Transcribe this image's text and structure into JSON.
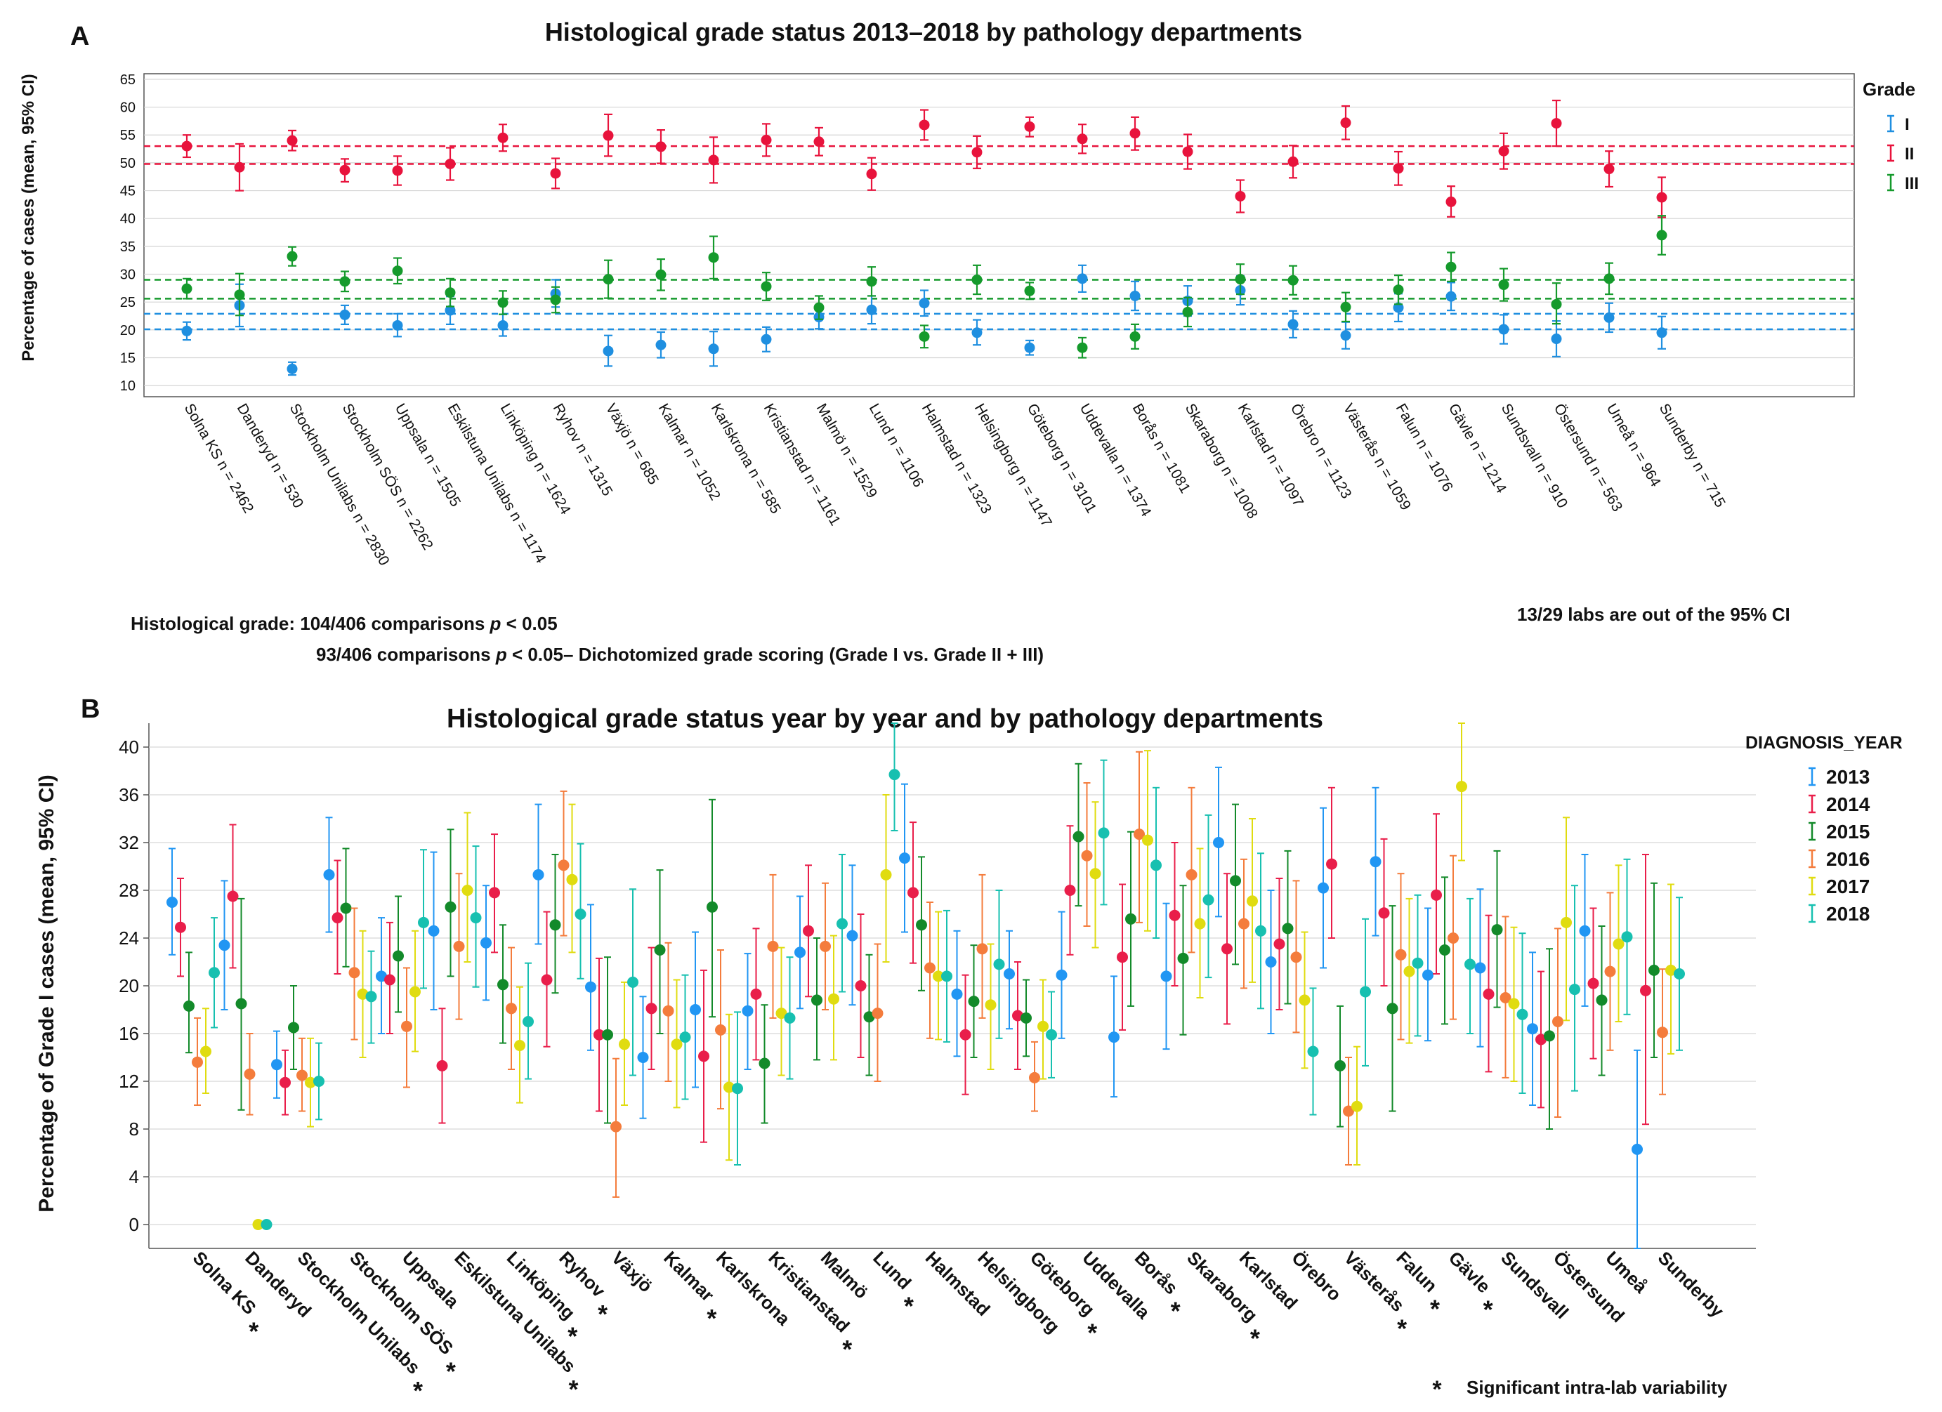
{
  "panel_a": {
    "letter": "A",
    "footnote_line1_prefix": "Histological grade: 104/406 comparisons",
    "footnote_line2_prefix": "93/406 comparisons",
    "footnote_p": "p",
    "footnote_line1_suffix": "< 0.05",
    "footnote_line2_suffix": "< 0.05– Dichotomized grade scoring (Grade I vs. Grade II + III)",
    "ci_note": "13/29 labs are out of the 95% CI"
  },
  "panel_b": {
    "letter": "B",
    "sig_star": "*",
    "sig_note": "Significant intra-lab variability"
  },
  "chart_data": [
    {
      "type": "scatter",
      "title": "Histological grade status 2013–2018 by pathology departments",
      "xlabel": "",
      "ylabel": "Percentage of cases (mean, 95% CI)",
      "ylim": [
        8,
        66
      ],
      "yticks": [
        10,
        15,
        20,
        25,
        30,
        35,
        40,
        45,
        50,
        55,
        60,
        65
      ],
      "grid": true,
      "legend_title": "Grade",
      "legend_position": "right",
      "categories": [
        "Solna KS n = 2462",
        "Danderyd n = 530",
        "Stockholm Unilabs n = 2830",
        "Stockholm SÖS n = 2262",
        "Uppsala n = 1505",
        "Eskilstuna Unilabs n = 1174",
        "Linköping n = 1624",
        "Ryhov n = 1315",
        "Växjö n = 685",
        "Kalmar n = 1052",
        "Karlskrona n = 585",
        "Kristianstad n = 1161",
        "Malmö n = 1529",
        "Lund n = 1106",
        "Halmstad n = 1323",
        "Helsingborg n = 1147",
        "Göteborg n = 3101",
        "Uddevalla n = 1374",
        "Borås n = 1081",
        "Skaraborg n = 1008",
        "Karlstad n = 1097",
        "Örebro n = 1123",
        "Västerås n = 1059",
        "Falun n = 1076",
        "Gävle n = 1214",
        "Sundsvall n = 910",
        "Östersund n = 563",
        "Umeå n = 964",
        "Sunderby n = 715"
      ],
      "series": [
        {
          "name": "I",
          "color": "#1f8fe0",
          "values": [
            19.8,
            24.4,
            13.0,
            22.7,
            20.8,
            23.5,
            20.8,
            26.5,
            16.2,
            17.3,
            16.6,
            18.3,
            22.3,
            23.6,
            24.8,
            19.5,
            16.8,
            29.2,
            26.1,
            25.2,
            27.1,
            21.0,
            19.0,
            24.0,
            26.0,
            20.1,
            18.4,
            22.2,
            19.5
          ],
          "lower": [
            18.2,
            20.6,
            11.9,
            21.0,
            18.8,
            21.0,
            18.9,
            24.1,
            13.5,
            15.0,
            13.5,
            16.1,
            20.2,
            21.1,
            22.5,
            17.3,
            15.5,
            26.8,
            23.5,
            22.5,
            24.5,
            18.6,
            16.6,
            21.5,
            23.5,
            17.5,
            15.2,
            19.6,
            16.6
          ],
          "upper": [
            21.4,
            28.2,
            14.2,
            24.4,
            22.9,
            26.0,
            22.8,
            29.0,
            19.0,
            19.6,
            19.7,
            20.5,
            24.4,
            26.1,
            27.1,
            21.8,
            18.1,
            31.6,
            28.7,
            27.9,
            29.7,
            23.4,
            21.4,
            26.5,
            28.5,
            22.7,
            21.6,
            24.8,
            22.4
          ]
        },
        {
          "name": "II",
          "color": "#e8133c",
          "values": [
            53.0,
            49.2,
            54.0,
            48.7,
            48.6,
            49.8,
            54.5,
            48.1,
            54.9,
            52.9,
            50.5,
            54.1,
            53.8,
            48.0,
            56.8,
            51.9,
            56.5,
            54.3,
            55.3,
            52.0,
            44.0,
            50.2,
            57.2,
            49.0,
            43.0,
            52.1,
            57.1,
            48.9,
            43.8
          ],
          "lower": [
            51.0,
            45.0,
            52.2,
            46.6,
            46.0,
            46.9,
            52.1,
            45.4,
            51.2,
            49.9,
            46.4,
            51.2,
            51.3,
            45.1,
            54.1,
            49.0,
            54.7,
            51.7,
            52.3,
            48.9,
            41.1,
            47.3,
            54.2,
            46.0,
            40.3,
            48.9,
            53.0,
            45.7,
            40.2
          ],
          "upper": [
            55.0,
            53.4,
            55.8,
            50.7,
            51.2,
            52.7,
            56.9,
            50.8,
            58.7,
            55.9,
            54.6,
            57.0,
            56.3,
            50.9,
            59.5,
            54.8,
            58.2,
            56.9,
            58.2,
            55.1,
            46.9,
            53.1,
            60.2,
            52.0,
            45.8,
            55.3,
            61.2,
            52.1,
            47.4
          ]
        },
        {
          "name": "III",
          "color": "#159a2c",
          "values": [
            27.4,
            26.3,
            33.2,
            28.7,
            30.6,
            26.7,
            24.9,
            25.4,
            29.1,
            29.9,
            33.0,
            27.8,
            24.0,
            28.7,
            18.8,
            29.0,
            27.0,
            16.8,
            18.8,
            23.2,
            29.1,
            28.9,
            24.1,
            27.2,
            31.3,
            28.1,
            24.6,
            29.2,
            37.0
          ],
          "lower": [
            25.6,
            22.6,
            31.5,
            26.9,
            28.3,
            24.2,
            22.8,
            23.1,
            25.7,
            27.1,
            29.2,
            25.3,
            21.9,
            26.1,
            16.8,
            26.4,
            25.5,
            15.0,
            16.6,
            20.6,
            26.4,
            26.3,
            21.5,
            24.6,
            28.7,
            25.2,
            21.1,
            26.4,
            33.5
          ],
          "upper": [
            29.2,
            30.1,
            34.9,
            30.5,
            32.9,
            29.2,
            27.0,
            27.7,
            32.5,
            32.7,
            36.8,
            30.3,
            26.1,
            31.3,
            20.8,
            31.6,
            28.5,
            18.6,
            21.0,
            25.8,
            31.8,
            31.5,
            26.7,
            29.8,
            33.9,
            31.0,
            28.4,
            32.0,
            40.5
          ]
        }
      ],
      "reference_lines": [
        {
          "grade": "II",
          "values": [
            49.8,
            53.0
          ]
        },
        {
          "grade": "III",
          "values": [
            25.6,
            29.0
          ]
        },
        {
          "grade": "I",
          "values": [
            20.1,
            22.9
          ]
        }
      ]
    },
    {
      "type": "scatter",
      "title": "Histological grade status year by year and by pathology departments",
      "xlabel": "",
      "ylabel": "Percentage of Grade I cases (mean, 95% CI)",
      "ylim": [
        -2,
        42
      ],
      "yticks": [
        0,
        4,
        8,
        12,
        16,
        20,
        24,
        28,
        32,
        36,
        40
      ],
      "grid": true,
      "legend_title": "DIAGNOSIS_YEAR",
      "legend_position": "right",
      "categories": [
        "Solna KS",
        "Danderyd",
        "Stockholm Unilabs",
        "Stockholm SÖS",
        "Uppsala",
        "Eskilstuna Unilabs",
        "Linköping",
        "Ryhov",
        "Växjö",
        "Kalmar",
        "Karlskrona",
        "Kristianstad",
        "Malmö",
        "Lund",
        "Halmstad",
        "Helsingborg",
        "Göteborg",
        "Uddevalla",
        "Borås",
        "Skaraborg",
        "Karlstad",
        "Örebro",
        "Västerås",
        "Falun",
        "Gävle",
        "Sundsvall",
        "Östersund",
        "Umeå",
        "Sunderby"
      ],
      "significant": [
        true,
        false,
        true,
        true,
        false,
        true,
        true,
        true,
        false,
        true,
        false,
        true,
        false,
        true,
        false,
        false,
        true,
        false,
        true,
        true,
        false,
        false,
        true,
        true,
        true,
        false,
        false,
        false,
        false
      ],
      "series": [
        {
          "name": "2013",
          "color": "#2196f3",
          "values": [
            27.0,
            23.4,
            13.4,
            29.3,
            20.8,
            24.6,
            23.6,
            29.3,
            19.9,
            14.0,
            18.0,
            17.9,
            22.8,
            24.2,
            30.7,
            19.3,
            21.0,
            20.9,
            15.7,
            20.8,
            32.0,
            22.0,
            28.2,
            30.4,
            20.9,
            21.5,
            16.4,
            24.6,
            6.3
          ],
          "lower": [
            22.6,
            18.0,
            10.6,
            24.5,
            16.0,
            18.0,
            18.8,
            23.5,
            14.6,
            8.9,
            11.5,
            13.0,
            18.1,
            18.4,
            24.5,
            14.1,
            16.4,
            15.6,
            10.7,
            14.7,
            25.8,
            16.0,
            21.5,
            24.2,
            15.4,
            14.9,
            10.0,
            18.3,
            -2.0
          ],
          "upper": [
            31.5,
            28.8,
            16.2,
            34.1,
            25.7,
            31.2,
            28.4,
            35.2,
            26.8,
            19.1,
            24.5,
            22.7,
            27.5,
            30.1,
            36.9,
            24.6,
            24.6,
            26.2,
            20.8,
            26.9,
            38.3,
            28.0,
            34.9,
            36.6,
            26.5,
            28.1,
            22.8,
            31.0,
            14.6
          ]
        },
        {
          "name": "2014",
          "color": "#e91e4a",
          "values": [
            24.9,
            27.5,
            11.9,
            25.7,
            20.5,
            13.3,
            27.8,
            20.5,
            15.9,
            18.1,
            14.1,
            19.3,
            24.6,
            20.0,
            27.8,
            15.9,
            17.5,
            28.0,
            22.4,
            25.9,
            23.1,
            23.5,
            30.2,
            26.1,
            27.6,
            19.3,
            15.5,
            20.2,
            19.6
          ],
          "lower": [
            20.8,
            21.5,
            9.2,
            21.0,
            16.0,
            8.5,
            22.8,
            14.9,
            9.5,
            13.0,
            6.9,
            13.8,
            19.1,
            14.0,
            21.9,
            10.9,
            13.0,
            22.6,
            16.3,
            20.0,
            16.8,
            18.0,
            24.0,
            20.0,
            21.0,
            12.8,
            9.8,
            13.9,
            8.4
          ],
          "upper": [
            29.0,
            33.5,
            14.6,
            30.5,
            25.3,
            18.1,
            32.7,
            26.2,
            22.3,
            23.2,
            21.3,
            24.8,
            30.1,
            26.0,
            33.7,
            20.9,
            22.0,
            33.4,
            28.5,
            32.0,
            29.4,
            29.0,
            36.6,
            32.3,
            34.4,
            25.9,
            21.2,
            26.5,
            31.0
          ]
        },
        {
          "name": "2015",
          "color": "#138a2a",
          "values": [
            18.3,
            18.5,
            16.5,
            26.5,
            22.5,
            26.6,
            20.1,
            25.1,
            15.9,
            23.0,
            26.6,
            13.5,
            18.8,
            17.4,
            25.1,
            18.7,
            17.3,
            32.5,
            25.6,
            22.3,
            28.8,
            24.8,
            13.3,
            18.1,
            23.0,
            24.7,
            15.8,
            18.8,
            21.3
          ],
          "lower": [
            14.4,
            9.6,
            13.0,
            21.6,
            17.8,
            20.8,
            15.2,
            19.4,
            8.5,
            16.0,
            17.4,
            8.5,
            13.8,
            12.5,
            19.6,
            14.0,
            14.1,
            26.7,
            18.3,
            15.9,
            21.8,
            18.5,
            8.2,
            9.5,
            16.8,
            18.2,
            8.0,
            12.5,
            14.0
          ],
          "upper": [
            22.8,
            27.3,
            20.0,
            31.5,
            27.5,
            33.1,
            25.1,
            31.0,
            22.4,
            29.7,
            35.6,
            18.4,
            24.0,
            22.6,
            30.8,
            23.4,
            20.5,
            38.6,
            32.9,
            28.4,
            35.2,
            31.3,
            18.3,
            26.7,
            29.1,
            31.3,
            23.1,
            25.0,
            28.6
          ]
        },
        {
          "name": "2016",
          "color": "#f47c3c",
          "values": [
            13.6,
            12.6,
            12.5,
            21.1,
            16.6,
            23.3,
            18.1,
            30.1,
            8.2,
            17.9,
            16.3,
            23.3,
            23.3,
            17.7,
            21.5,
            23.1,
            12.3,
            30.9,
            32.7,
            29.3,
            25.2,
            22.4,
            9.5,
            22.6,
            24.0,
            19.0,
            17.0,
            21.2,
            16.1
          ],
          "lower": [
            10.0,
            9.2,
            9.5,
            15.5,
            11.5,
            17.2,
            13.0,
            24.2,
            2.3,
            12.0,
            9.7,
            17.3,
            18.0,
            12.0,
            15.6,
            17.3,
            9.5,
            25.0,
            25.3,
            22.8,
            19.8,
            16.1,
            5.0,
            15.5,
            17.2,
            12.3,
            9.0,
            14.6,
            10.9
          ],
          "upper": [
            17.3,
            16.0,
            15.6,
            26.5,
            21.5,
            29.4,
            23.2,
            36.3,
            13.9,
            23.6,
            23.0,
            29.3,
            28.6,
            23.5,
            27.0,
            29.3,
            15.3,
            37.0,
            39.6,
            36.6,
            30.6,
            28.8,
            14.0,
            29.4,
            30.9,
            25.8,
            24.8,
            27.8,
            21.4
          ]
        },
        {
          "name": "2017",
          "color": "#e0dc10",
          "values": [
            14.5,
            0.0,
            11.9,
            19.3,
            19.5,
            28.0,
            15.0,
            28.9,
            15.1,
            15.1,
            11.5,
            17.7,
            18.9,
            29.3,
            20.8,
            18.4,
            16.6,
            29.4,
            32.2,
            25.2,
            27.1,
            18.8,
            9.9,
            21.2,
            36.7,
            18.5,
            25.3,
            23.5,
            21.3
          ],
          "lower": [
            11.0,
            0.0,
            8.2,
            14.0,
            14.5,
            22.0,
            10.2,
            22.8,
            10.0,
            9.8,
            5.4,
            12.5,
            13.8,
            22.0,
            15.5,
            13.0,
            12.2,
            23.2,
            24.6,
            19.0,
            20.3,
            13.1,
            5.0,
            15.2,
            30.5,
            12.0,
            17.1,
            17.0,
            14.3
          ],
          "upper": [
            18.1,
            0.0,
            15.6,
            24.6,
            24.6,
            34.5,
            19.9,
            35.2,
            20.3,
            20.5,
            17.6,
            23.2,
            24.2,
            36.0,
            26.2,
            23.5,
            20.5,
            35.4,
            39.7,
            31.5,
            34.0,
            24.5,
            14.9,
            27.3,
            42.5,
            24.9,
            34.1,
            30.1,
            28.5
          ]
        },
        {
          "name": "2018",
          "color": "#17c0b0",
          "values": [
            21.1,
            0.0,
            12.0,
            19.1,
            25.3,
            25.7,
            17.0,
            26.0,
            20.3,
            15.7,
            11.4,
            17.3,
            25.2,
            37.7,
            20.8,
            21.8,
            15.9,
            32.8,
            30.1,
            27.2,
            24.6,
            14.5,
            19.5,
            21.9,
            21.8,
            17.6,
            19.7,
            24.1,
            21.0
          ],
          "lower": [
            16.5,
            0.0,
            8.8,
            15.2,
            19.8,
            19.9,
            12.2,
            20.6,
            12.5,
            10.5,
            5.0,
            12.2,
            19.5,
            33.0,
            15.3,
            15.6,
            12.3,
            26.8,
            24.0,
            20.7,
            18.1,
            9.2,
            13.3,
            15.8,
            16.0,
            11.0,
            11.2,
            17.6,
            14.6
          ],
          "upper": [
            25.7,
            0.0,
            15.2,
            22.9,
            31.4,
            31.7,
            21.9,
            31.9,
            28.1,
            20.9,
            17.8,
            22.4,
            31.0,
            42.5,
            26.3,
            28.0,
            19.5,
            38.9,
            36.6,
            34.3,
            31.1,
            19.8,
            25.6,
            27.6,
            27.3,
            24.4,
            28.4,
            30.6,
            27.4
          ]
        }
      ]
    }
  ]
}
